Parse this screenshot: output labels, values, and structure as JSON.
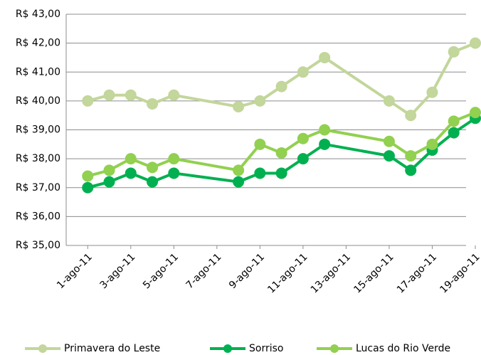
{
  "chart_data": {
    "type": "line",
    "x": [
      1,
      2,
      3,
      4,
      5,
      8,
      9,
      10,
      11,
      12,
      15,
      16,
      17,
      18,
      19
    ],
    "series": [
      {
        "name": "Primavera do Leste",
        "color": "#c3d69b",
        "values": [
          40.0,
          40.2,
          40.2,
          39.9,
          40.2,
          39.8,
          40.0,
          40.5,
          41.0,
          41.5,
          40.0,
          39.5,
          40.3,
          41.7,
          42.0
        ]
      },
      {
        "name": "Sorriso",
        "color": "#00b050",
        "values": [
          37.0,
          37.2,
          37.5,
          37.2,
          37.5,
          37.2,
          37.5,
          37.5,
          38.0,
          38.5,
          38.1,
          37.6,
          38.3,
          38.9,
          39.4
        ]
      },
      {
        "name": "Lucas do Rio Verde",
        "color": "#92d050",
        "values": [
          37.4,
          37.6,
          38.0,
          37.7,
          38.0,
          37.6,
          38.5,
          38.2,
          38.7,
          39.0,
          38.6,
          38.1,
          38.5,
          39.3,
          39.6
        ]
      }
    ],
    "xlim": [
      0,
      19
    ],
    "xticks": [
      {
        "value": 1,
        "label": "1-ago-11"
      },
      {
        "value": 3,
        "label": "3-ago-11"
      },
      {
        "value": 5,
        "label": "5-ago-11"
      },
      {
        "value": 7,
        "label": "7-ago-11"
      },
      {
        "value": 9,
        "label": "9-ago-11"
      },
      {
        "value": 11,
        "label": "11-ago-11"
      },
      {
        "value": 13,
        "label": "13-ago-11"
      },
      {
        "value": 15,
        "label": "15-ago-11"
      },
      {
        "value": 17,
        "label": "17-ago-11"
      },
      {
        "value": 19,
        "label": "19-ago-11"
      }
    ],
    "ylim": [
      35,
      43
    ],
    "yticks": [
      {
        "value": 35,
        "label": "R$ 35,00"
      },
      {
        "value": 36,
        "label": "R$ 36,00"
      },
      {
        "value": 37,
        "label": "R$ 37,00"
      },
      {
        "value": 38,
        "label": "R$ 38,00"
      },
      {
        "value": 39,
        "label": "R$ 39,00"
      },
      {
        "value": 40,
        "label": "R$ 40,00"
      },
      {
        "value": 41,
        "label": "R$ 41,00"
      },
      {
        "value": 42,
        "label": "R$ 42,00"
      },
      {
        "value": 43,
        "label": "R$ 43,00"
      }
    ],
    "grid": true,
    "legend": "bottom"
  }
}
